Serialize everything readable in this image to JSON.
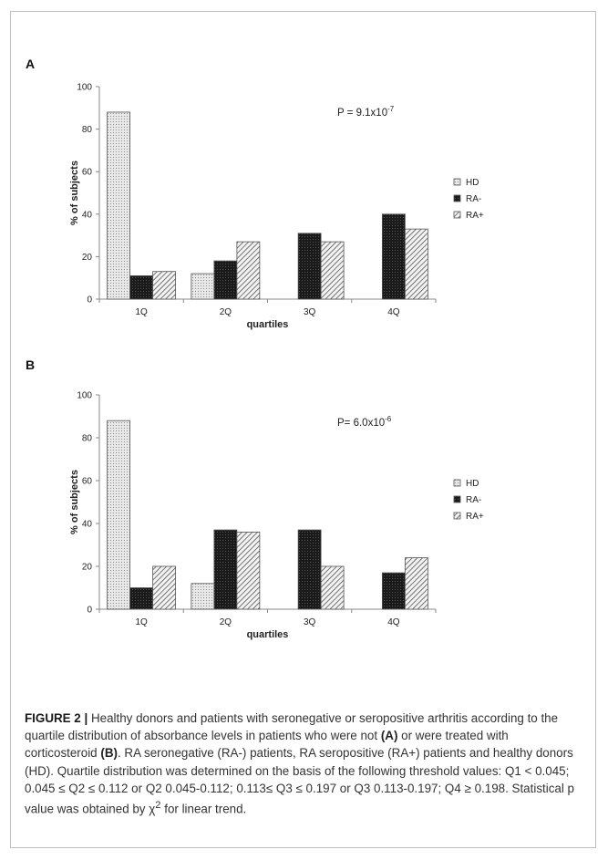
{
  "colors": {
    "frame": "#bfbfbf",
    "axis": "#888888",
    "hd_fill": "#e8e8e8",
    "ra_neg_fill": "#1a1a1a",
    "ra_pos_fill": "#f2f2f2",
    "hatch": "#333333"
  },
  "chart_data": [
    {
      "type": "bar",
      "panel": "A",
      "annotation": "P = 9.1x10",
      "annotation_exp": "-7",
      "ylabel": "% of subjects",
      "xlabel": "quartiles",
      "ylim": [
        0,
        100
      ],
      "yticks": [
        "0",
        "20",
        "40",
        "60",
        "80",
        "100"
      ],
      "categories": [
        "1Q",
        "2Q",
        "3Q",
        "4Q"
      ],
      "legend_position": "right",
      "series": [
        {
          "name": "HD",
          "pattern": "dots",
          "values": [
            88,
            12,
            0,
            0
          ]
        },
        {
          "name": "RA-",
          "pattern": "dark",
          "values": [
            11,
            18,
            31,
            40
          ]
        },
        {
          "name": "RA+",
          "pattern": "hatch",
          "values": [
            13,
            27,
            27,
            33
          ]
        }
      ]
    },
    {
      "type": "bar",
      "panel": "B",
      "annotation": "P= 6.0x10",
      "annotation_exp": "-6",
      "ylabel": "% of subjects",
      "xlabel": "quartiles",
      "ylim": [
        0,
        100
      ],
      "yticks": [
        "0",
        "20",
        "40",
        "60",
        "80",
        "100"
      ],
      "categories": [
        "1Q",
        "2Q",
        "3Q",
        "4Q"
      ],
      "legend_position": "right",
      "series": [
        {
          "name": "HD",
          "pattern": "dots",
          "values": [
            88,
            12,
            0,
            0
          ]
        },
        {
          "name": "RA-",
          "pattern": "dark",
          "values": [
            10,
            37,
            37,
            17
          ]
        },
        {
          "name": "RA+",
          "pattern": "hatch",
          "values": [
            20,
            36,
            20,
            24
          ]
        }
      ]
    }
  ],
  "caption": {
    "head": "FIGURE 2 |",
    "t1": "Healthy donors and patients with seronegative or seropositive arthritis according to the quartile distribution of absorbance levels in patients who were not",
    "ref_a": "(A)",
    "t2": "or were treated with corticosteroid",
    "ref_b": "(B)",
    "t3": ". RA seronegative (RA-) patients, RA seropositive (RA+) patients and healthy donors (HD). Quartile distribution was determined on the basis of the following threshold values: Q1 < 0.045; 0.045 ≤ Q2 ≤ 0.112 or Q2 0.045-0.112; 0.113≤ Q3 ≤ 0.197 or Q3 0.113-0.197; Q4 ≥ 0.198. Statistical p value was obtained by χ",
    "sup": "2",
    "t4": "for linear trend."
  }
}
